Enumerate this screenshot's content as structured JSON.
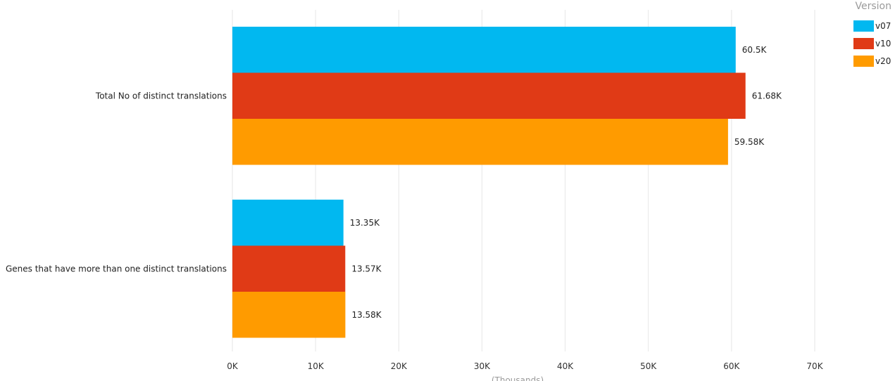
{
  "chart_data": {
    "type": "bar",
    "orientation": "horizontal",
    "categories": [
      "Total No of distinct translations",
      "Genes that have more than one distinct translations"
    ],
    "series": [
      {
        "name": "v07",
        "color": "#01B8F0",
        "values": [
          60500,
          13350
        ],
        "labels": [
          "60.5K",
          "13.35K"
        ]
      },
      {
        "name": "v10",
        "color": "#E03A16",
        "values": [
          61680,
          13570
        ],
        "labels": [
          "61.68K",
          "13.57K"
        ]
      },
      {
        "name": "v20",
        "color": "#FF9B00",
        "values": [
          59580,
          13580
        ],
        "labels": [
          "59.58K",
          "13.58K"
        ]
      }
    ],
    "x_ticks": [
      0,
      10000,
      20000,
      30000,
      40000,
      50000,
      60000,
      70000
    ],
    "x_tick_labels": [
      "0K",
      "10K",
      "20K",
      "30K",
      "40K",
      "50K",
      "60K",
      "70K"
    ],
    "xlim": [
      0,
      70000
    ],
    "xlabel": "(Thousands)",
    "ylabel": "",
    "legend": {
      "title": "Version",
      "position": "top-right"
    },
    "grid": true
  }
}
